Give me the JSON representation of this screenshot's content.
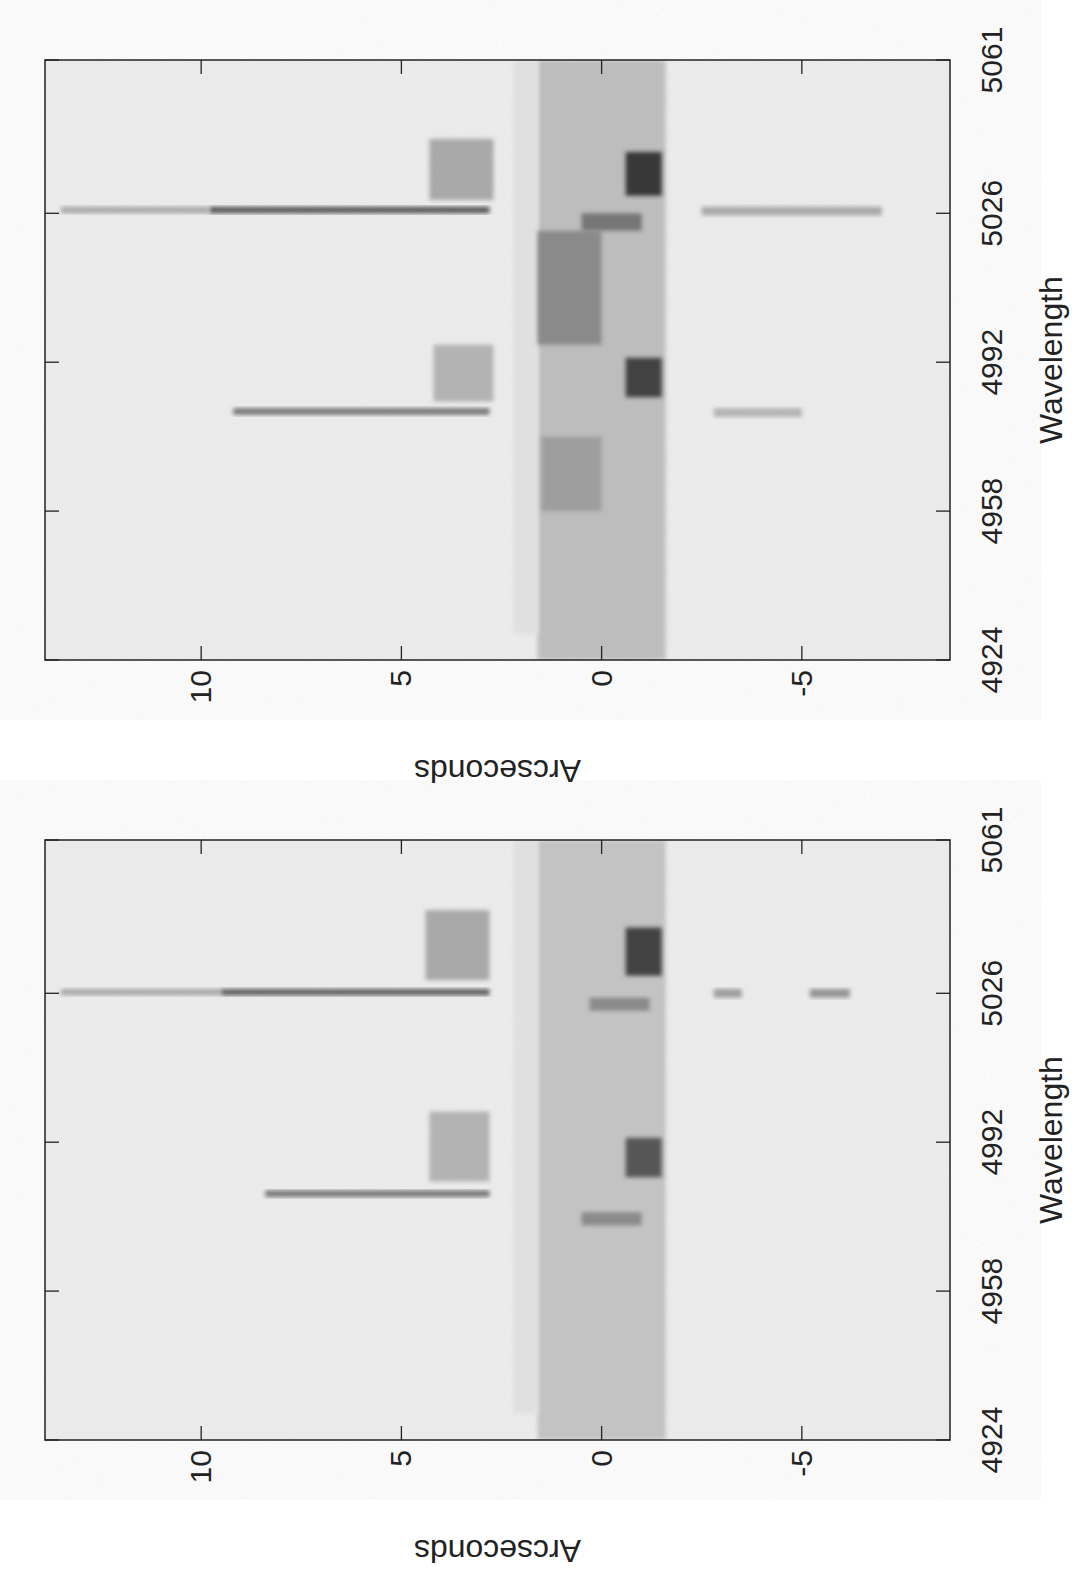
{
  "chart_data": [
    {
      "type": "spectrum_image",
      "x_label": "Wavelength",
      "y_label": "Arcseconds",
      "xlim": [
        4924,
        5061
      ],
      "ylim": [
        -8.7,
        13.9
      ],
      "xticks": [
        4924,
        4958,
        4992,
        5026,
        5061
      ],
      "yticks": [
        10,
        5,
        0,
        -5
      ],
      "features": [
        {
          "wavelength": [
            4924,
            5061
          ],
          "arcsec": [
            -1.6,
            1.6
          ],
          "level": 0.22
        },
        {
          "wavelength": [
            4930,
            5061
          ],
          "arcsec": [
            1.6,
            2.2
          ],
          "level": 0.08
        },
        {
          "wavelength": [
            5025.5,
            5027
          ],
          "arcsec": [
            9.5,
            13.5
          ],
          "level": 0.35
        },
        {
          "wavelength": [
            5025.5,
            5027
          ],
          "arcsec": [
            2.8,
            9.5
          ],
          "level": 0.7
        },
        {
          "wavelength": [
            5025,
            5027
          ],
          "arcsec": [
            -3.5,
            -2.8
          ],
          "level": 0.4
        },
        {
          "wavelength": [
            5025,
            5027
          ],
          "arcsec": [
            -6.2,
            -5.2
          ],
          "level": 0.45
        },
        {
          "wavelength": [
            5029,
            5045
          ],
          "arcsec": [
            2.8,
            4.4
          ],
          "level": 0.35
        },
        {
          "wavelength": [
            4979.5,
            4981
          ],
          "arcsec": [
            2.8,
            8.4
          ],
          "level": 0.6
        },
        {
          "wavelength": [
            4983,
            4999
          ],
          "arcsec": [
            2.8,
            4.3
          ],
          "level": 0.3
        },
        {
          "wavelength": [
            5030,
            5041
          ],
          "arcsec": [
            -1.5,
            -0.6
          ],
          "level": 0.85
        },
        {
          "wavelength": [
            4984,
            4993
          ],
          "arcsec": [
            -1.5,
            -0.6
          ],
          "level": 0.75
        },
        {
          "wavelength": [
            4973,
            4976
          ],
          "arcsec": [
            -1,
            0.5
          ],
          "level": 0.5
        },
        {
          "wavelength": [
            5022,
            5025
          ],
          "arcsec": [
            -1.2,
            0.3
          ],
          "level": 0.5
        }
      ]
    },
    {
      "type": "spectrum_image",
      "x_label": "Wavelength",
      "y_label": "Arcseconds",
      "xlim": [
        4924,
        5061
      ],
      "ylim": [
        -8.7,
        13.9
      ],
      "xticks": [
        4924,
        4958,
        4992,
        5026,
        5061
      ],
      "yticks": [
        10,
        5,
        0,
        -5
      ],
      "features": [
        {
          "wavelength": [
            4924,
            5061
          ],
          "arcsec": [
            -1.6,
            1.6
          ],
          "level": 0.25
        },
        {
          "wavelength": [
            4930,
            5061
          ],
          "arcsec": [
            1.6,
            2.2
          ],
          "level": 0.08
        },
        {
          "wavelength": [
            5026,
            5027.5
          ],
          "arcsec": [
            2.8,
            9.8
          ],
          "level": 0.75
        },
        {
          "wavelength": [
            5026,
            5027.5
          ],
          "arcsec": [
            9.8,
            13.5
          ],
          "level": 0.35
        },
        {
          "wavelength": [
            5025.5,
            5027.5
          ],
          "arcsec": [
            -7,
            -2.5
          ],
          "level": 0.35
        },
        {
          "wavelength": [
            5029,
            5043
          ],
          "arcsec": [
            2.7,
            4.3
          ],
          "level": 0.35
        },
        {
          "wavelength": [
            4980,
            4981.5
          ],
          "arcsec": [
            2.8,
            9.2
          ],
          "level": 0.6
        },
        {
          "wavelength": [
            4979.5,
            4981.5
          ],
          "arcsec": [
            -5,
            -2.8
          ],
          "level": 0.3
        },
        {
          "wavelength": [
            4983,
            4996
          ],
          "arcsec": [
            2.7,
            4.2
          ],
          "level": 0.3
        },
        {
          "wavelength": [
            5030,
            5040
          ],
          "arcsec": [
            -1.5,
            -0.6
          ],
          "level": 0.9
        },
        {
          "wavelength": [
            4984,
            4993
          ],
          "arcsec": [
            -1.5,
            -0.6
          ],
          "level": 0.85
        },
        {
          "wavelength": [
            4996,
            5022
          ],
          "arcsec": [
            0,
            1.6
          ],
          "level": 0.5
        },
        {
          "wavelength": [
            4958,
            4975
          ],
          "arcsec": [
            0,
            1.5
          ],
          "level": 0.4
        },
        {
          "wavelength": [
            5022,
            5026
          ],
          "arcsec": [
            -1,
            0.5
          ],
          "level": 0.6
        }
      ]
    }
  ]
}
